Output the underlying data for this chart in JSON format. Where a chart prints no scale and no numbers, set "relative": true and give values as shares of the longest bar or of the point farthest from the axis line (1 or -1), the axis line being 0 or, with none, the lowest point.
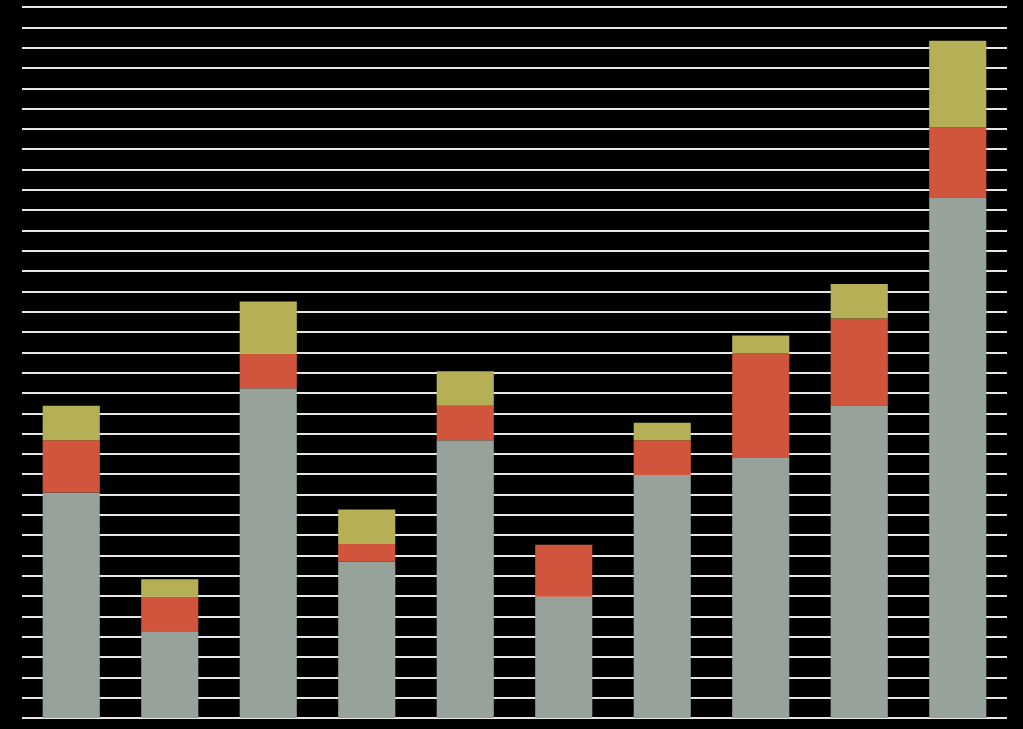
{
  "chart_data": {
    "type": "bar",
    "stacked": true,
    "relative": true,
    "grid": "y",
    "categories": [
      null,
      null,
      null,
      null,
      null,
      null,
      null,
      null,
      null,
      null
    ],
    "series": [
      {
        "color": "#96a29a",
        "values": [
          0.333,
          0.128,
          0.487,
          0.231,
          0.41,
          0.179,
          0.359,
          0.385,
          0.462,
          0.769
        ]
      },
      {
        "color": "#d0553c",
        "values": [
          0.077,
          0.051,
          0.051,
          0.026,
          0.051,
          0.077,
          0.051,
          0.154,
          0.128,
          0.103
        ]
      },
      {
        "color": "#b5b056",
        "values": [
          0.051,
          0.026,
          0.077,
          0.051,
          0.051,
          0,
          0.026,
          0.026,
          0.051,
          0.128
        ]
      }
    ]
  }
}
